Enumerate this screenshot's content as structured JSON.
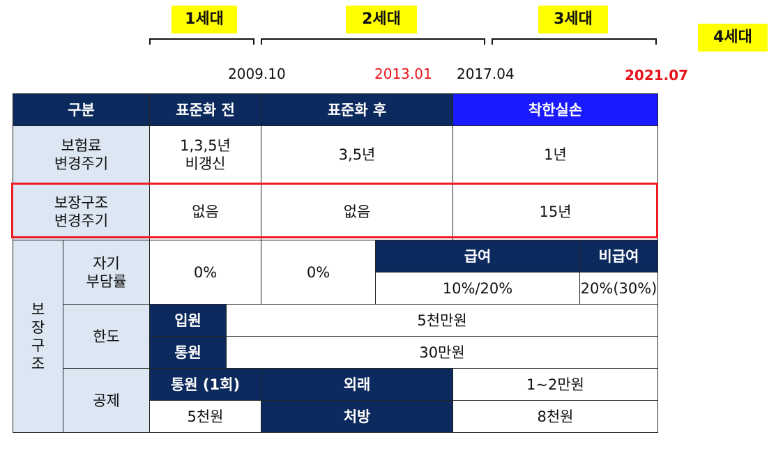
{
  "generations": [
    "1세대",
    "2세대",
    "3세대",
    "4세대"
  ],
  "dates": [
    "2009.10",
    "2013.01",
    "2017.04",
    "2021.07"
  ],
  "header": {
    "category": "구분",
    "before_std": "표준화 전",
    "after_std": "표준화 후",
    "good_loss": "착한실손"
  },
  "premium_cycle": {
    "label_line1": "보험료",
    "label_line2": "변경주기",
    "gen1_line1": "1,3,5년",
    "gen1_line2": "비갱신",
    "gen2": "3,5년",
    "gen34": "1년"
  },
  "coverage_cycle": {
    "label_line1": "보장구조",
    "label_line2": "변경주기",
    "gen1": "없음",
    "gen2": "없음",
    "gen34": "15년"
  },
  "coverage": {
    "label_chars": [
      "보",
      "장",
      "구",
      "조"
    ],
    "self_pay": {
      "label_line1": "자기",
      "label_line2": "부담률",
      "gen1": "0%",
      "gen2": "0%",
      "covered_header": "급여",
      "noncovered_header": "비급여",
      "covered": "10%/20%",
      "noncovered": "20%(30%)"
    },
    "limit": {
      "label": "한도",
      "inpatient_label": "입원",
      "inpatient": "5천만원",
      "outpatient_label": "통원",
      "outpatient": "30만원"
    },
    "deduct": {
      "label": "공제",
      "per_visit_label": "통원 (1회)",
      "per_visit": "5천원",
      "outpatient_label": "외래",
      "outpatient": "1~2만원",
      "rx_label": "처방",
      "rx": "8천원"
    }
  }
}
